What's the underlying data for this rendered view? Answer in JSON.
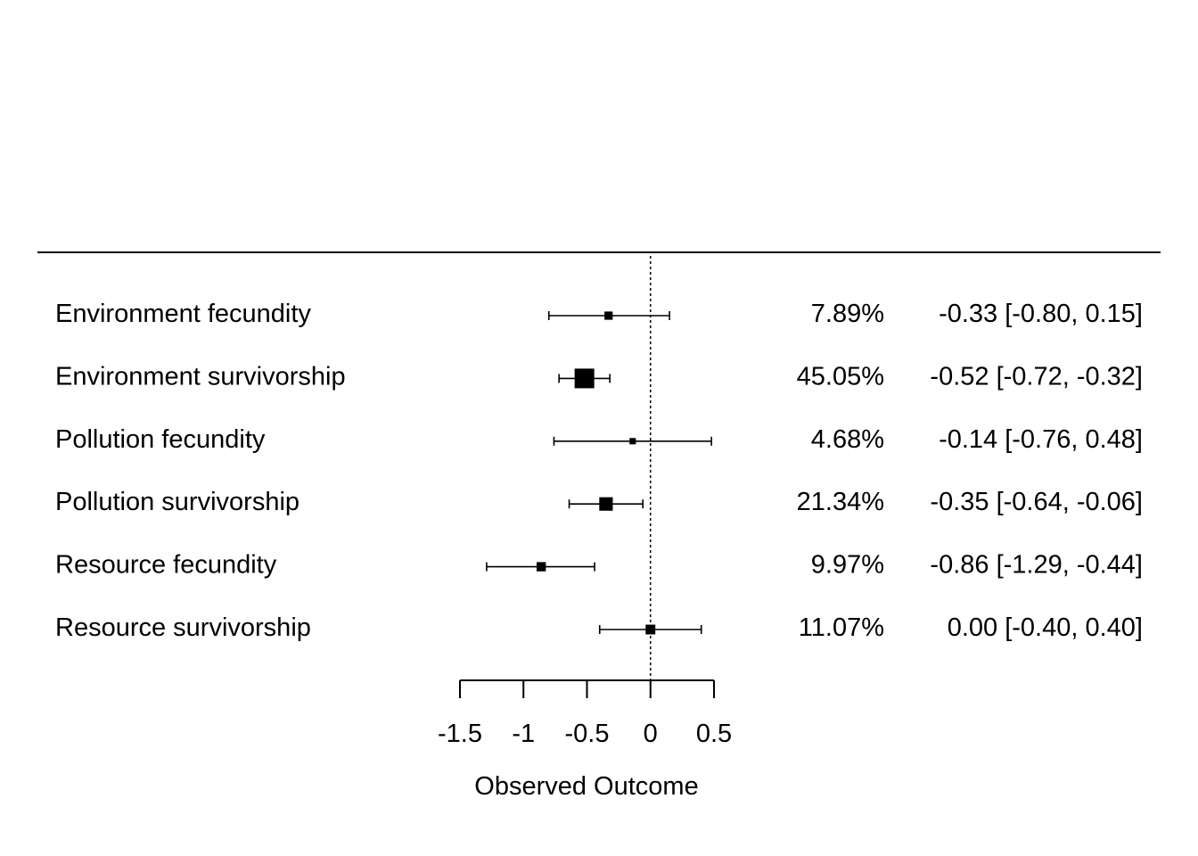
{
  "chart_data": {
    "type": "forest",
    "xlabel": "Observed Outcome",
    "xlim": [
      -1.5,
      0.5
    ],
    "xticks": [
      -1.5,
      -1,
      -0.5,
      0,
      0.5
    ],
    "xtick_labels": [
      "-1.5",
      "-1",
      "-0.5",
      "0",
      "0.5"
    ],
    "reference_line": 0,
    "studies": [
      {
        "label": "Environment fecundity",
        "estimate": -0.33,
        "ci_lower": -0.8,
        "ci_upper": 0.15,
        "weight": 7.89,
        "weight_label": "7.89%",
        "ci_text": "-0.33 [-0.80,  0.15]"
      },
      {
        "label": "Environment survivorship",
        "estimate": -0.52,
        "ci_lower": -0.72,
        "ci_upper": -0.32,
        "weight": 45.05,
        "weight_label": "45.05%",
        "ci_text": "-0.52 [-0.72, -0.32]"
      },
      {
        "label": "Pollution  fecundity",
        "estimate": -0.14,
        "ci_lower": -0.76,
        "ci_upper": 0.48,
        "weight": 4.68,
        "weight_label": "4.68%",
        "ci_text": "-0.14 [-0.76,  0.48]"
      },
      {
        "label": "Pollution  survivorship",
        "estimate": -0.35,
        "ci_lower": -0.64,
        "ci_upper": -0.06,
        "weight": 21.34,
        "weight_label": "21.34%",
        "ci_text": "-0.35 [-0.64, -0.06]"
      },
      {
        "label": "Resource  fecundity",
        "estimate": -0.86,
        "ci_lower": -1.29,
        "ci_upper": -0.44,
        "weight": 9.97,
        "weight_label": "9.97%",
        "ci_text": "-0.86 [-1.29, -0.44]"
      },
      {
        "label": "Resource  survivorship",
        "estimate": 0.0,
        "ci_lower": -0.4,
        "ci_upper": 0.4,
        "weight": 11.07,
        "weight_label": "11.07%",
        "ci_text": " 0.00 [-0.40,  0.40]"
      }
    ]
  }
}
